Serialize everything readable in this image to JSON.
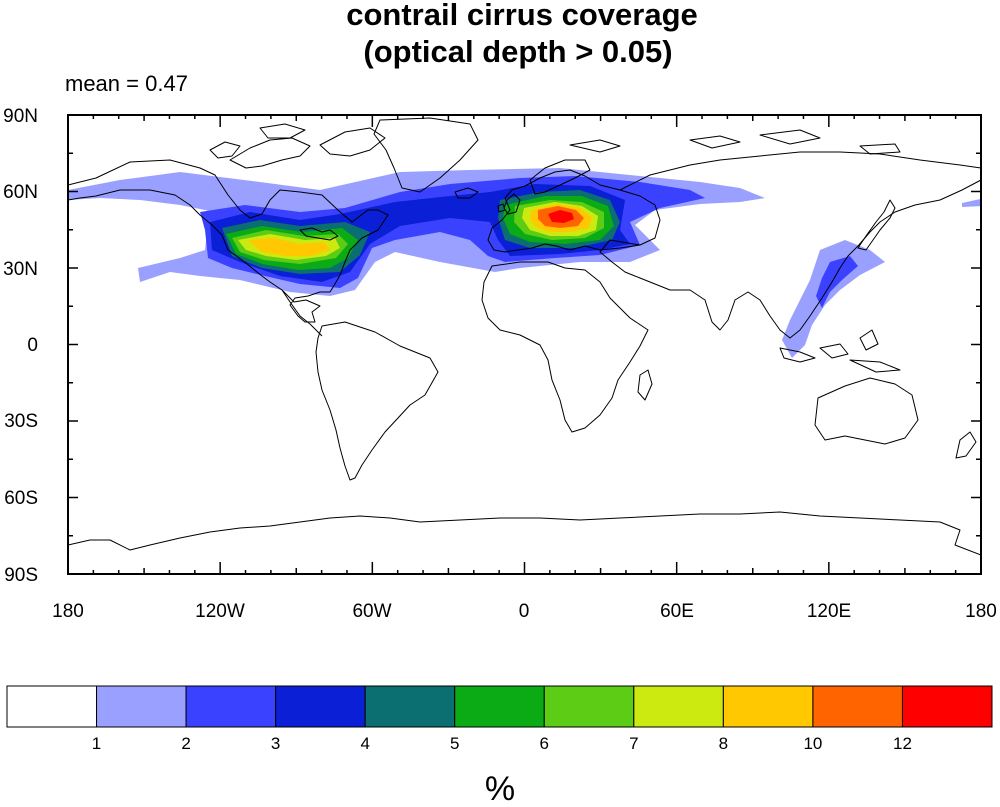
{
  "title_line1": "contrail cirrus coverage",
  "title_line2": "(optical depth > 0.05)",
  "stat_label": "mean = 0.47",
  "lat_labels": [
    "90N",
    "60N",
    "30N",
    "0",
    "30S",
    "60S",
    "90S"
  ],
  "lon_labels": [
    "180",
    "120W",
    "60W",
    "0",
    "60E",
    "120E",
    "180"
  ],
  "colorbar": {
    "unit": "%",
    "boundaries": [
      "1",
      "2",
      "3",
      "4",
      "5",
      "6",
      "7",
      "8",
      "10",
      "12"
    ],
    "colors": [
      "#ffffff",
      "#9aa0ff",
      "#3a42ff",
      "#0a1fd6",
      "#0b6e70",
      "#0aab14",
      "#5ccc14",
      "#ccea10",
      "#ffc800",
      "#ff6400",
      "#ff0000"
    ]
  },
  "map_data": {
    "projection": "cylindrical-equidistant",
    "lon_range": [
      -180,
      180
    ],
    "lat_range": [
      -90,
      90
    ],
    "coastlines": "continents",
    "field_max_region": "Central Europe"
  }
}
